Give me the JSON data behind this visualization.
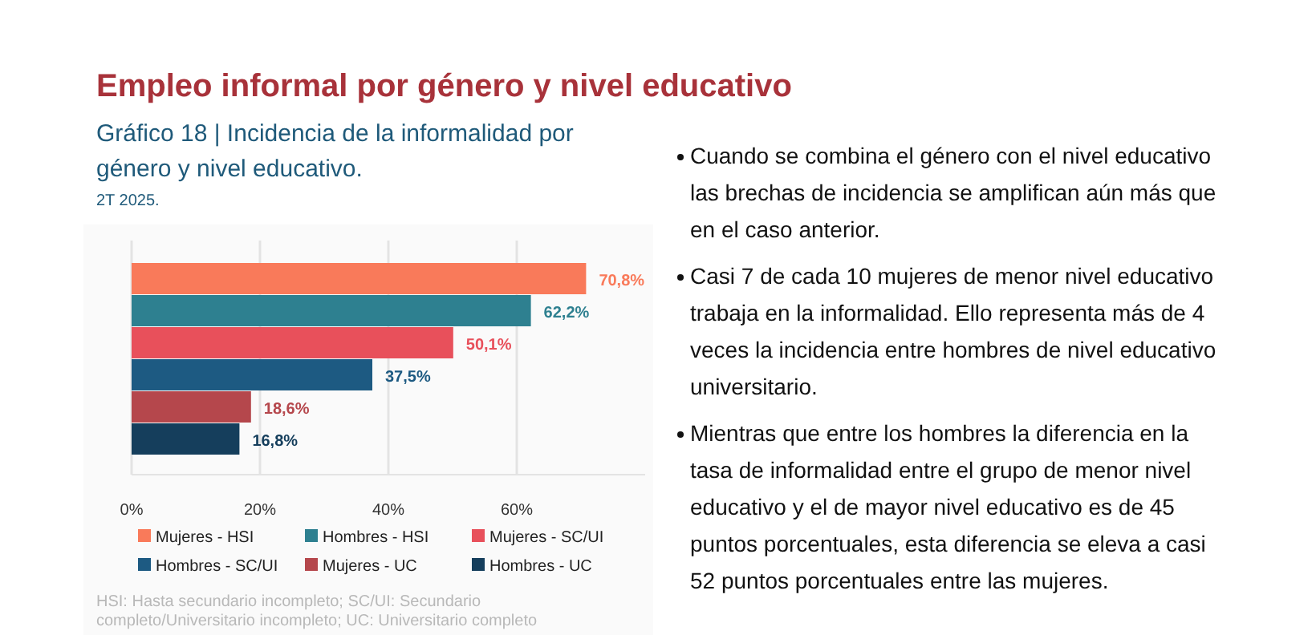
{
  "chart_data": [
    {
      "type": "bar",
      "orientation": "horizontal",
      "title": "Empleo informal por género y nivel educativo",
      "subtitle": "Gráfico 18 | Incidencia de la informalidad por género y nivel educativo.",
      "categories": [
        null
      ],
      "series": [
        {
          "name": "Mujeres - HSI",
          "color": "#f97a5a",
          "values": [
            70.8
          ],
          "value_labels": [
            "70,8%"
          ]
        },
        {
          "name": "Hombres - HSI",
          "color": "#2e8090",
          "values": [
            62.2
          ],
          "value_labels": [
            "62,2%"
          ]
        },
        {
          "name": "Mujeres - SC/UI",
          "color": "#e8505b",
          "values": [
            50.1
          ],
          "value_labels": [
            "50,1%"
          ]
        },
        {
          "name": "Hombres - SC/UI",
          "color": "#1d5a82",
          "values": [
            37.5
          ],
          "value_labels": [
            "37,5%"
          ]
        },
        {
          "name": "Mujeres - UC",
          "color": "#b5474c",
          "values": [
            18.6
          ],
          "value_labels": [
            "18,6%"
          ]
        },
        {
          "name": "Hombres - UC",
          "color": "#153e5c",
          "values": [
            16.8
          ],
          "value_labels": [
            "16,8%"
          ]
        }
      ],
      "xlim": [
        0,
        80
      ],
      "xticks": [
        {
          "value": 0,
          "label": "0%"
        },
        {
          "value": 20,
          "label": "20%"
        },
        {
          "value": 40,
          "label": "40%"
        },
        {
          "value": 60,
          "label": "60%"
        }
      ],
      "grid": "x",
      "legend": "bottom",
      "annotations": [
        "2T 2025.",
        "HSI: Hasta secundario incompleto; SC/UI: Secundario completo/Universitario incompleto; UC: Universitario completo"
      ]
    },
    {
      "type": "other",
      "annotations": [
        "Cuando se combina el género con el nivel educativo las brechas de incidencia se amplifican aún más que en el caso anterior.",
        "Casi 7 de cada 10 mujeres de menor nivel educativo trabaja en la informalidad. Ello representa más de 4 veces la incidencia entre hombres de nivel educativo universitario.",
        "Mientras que entre los hombres la diferencia en la tasa de informalidad entre el grupo de menor nivel educativo y el de mayor nivel educativo es de 45 puntos porcentuales, esta diferencia se eleva a casi 52 puntos porcentuales entre las mujeres."
      ]
    }
  ]
}
